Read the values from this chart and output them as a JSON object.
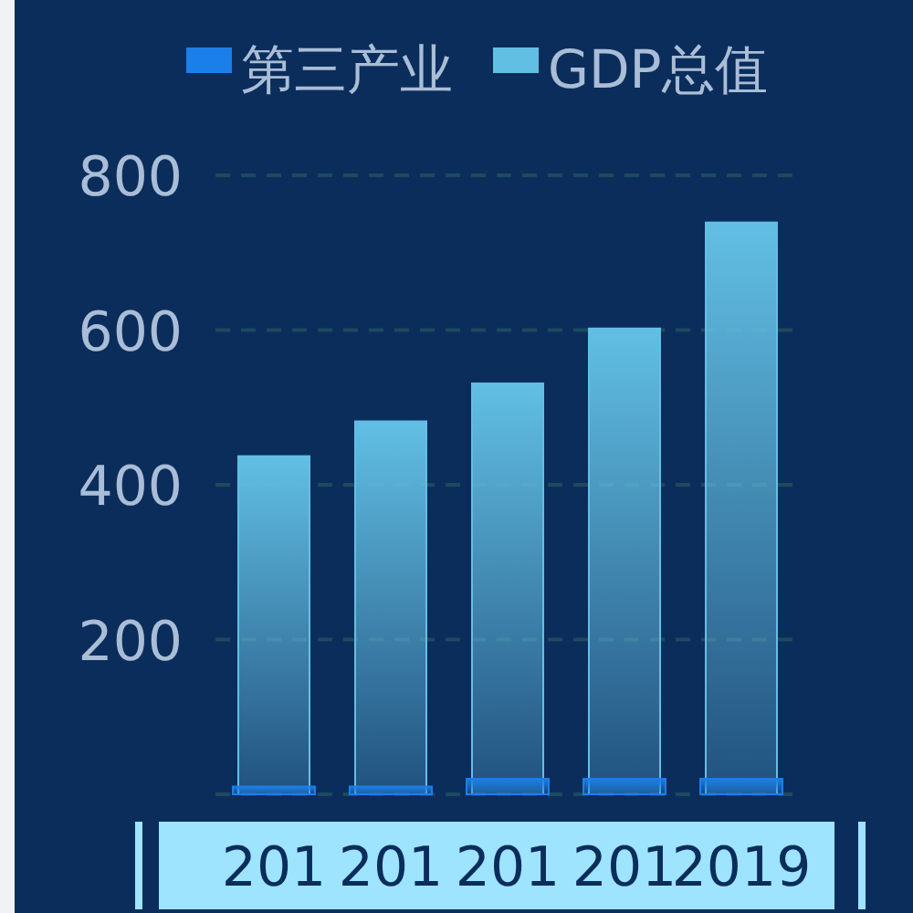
{
  "chart_data": {
    "type": "bar",
    "categories": [
      "201",
      "201",
      "201",
      "201",
      "2019"
    ],
    "series": [
      {
        "name": "第三产业",
        "color": "#1a7fe8",
        "values": [
          10,
          10,
          20,
          20,
          20
        ]
      },
      {
        "name": "GDP总值",
        "color": "#62bfe4",
        "values": [
          437,
          482,
          531,
          602,
          739
        ]
      }
    ],
    "ylim": [
      0,
      800
    ],
    "yticks": [
      200,
      400,
      600,
      800
    ],
    "grid": "y",
    "legend": "top"
  }
}
